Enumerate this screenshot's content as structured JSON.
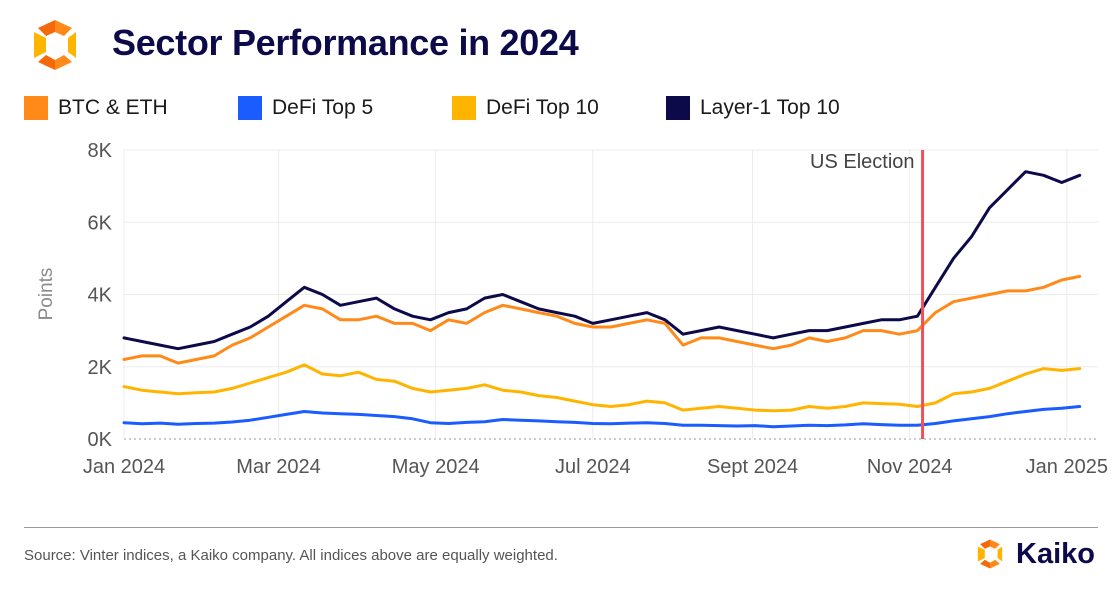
{
  "header": {
    "title": "Sector Performance in 2024",
    "logo_icon": "kaiko-logo-icon"
  },
  "colors": {
    "btc_eth": "#ff8a1a",
    "defi5": "#1a5cff",
    "defi10": "#ffb400",
    "l1": "#0d0a4a",
    "election": "#f0505a",
    "grid": "#ececec",
    "title": "#0d0a4a"
  },
  "chart_data": {
    "type": "line",
    "title": "Sector Performance in 2024",
    "xlabel": "",
    "ylabel": "Points",
    "ylim": [
      0,
      8000
    ],
    "yticks": [
      0,
      2000,
      4000,
      6000,
      8000
    ],
    "ytick_labels": [
      "0K",
      "2K",
      "4K",
      "6K",
      "8K"
    ],
    "xlim": [
      "2024-01-01",
      "2025-01-10"
    ],
    "xticks": [
      "2024-01-01",
      "2024-03-01",
      "2024-05-01",
      "2024-07-01",
      "2024-09-01",
      "2024-11-01",
      "2025-01-01"
    ],
    "xtick_labels": [
      "Jan 2024",
      "Mar 2024",
      "May 2024",
      "Jul 2024",
      "Sept 2024",
      "Nov 2024",
      "Jan 2025"
    ],
    "grid": true,
    "legend_position": "top",
    "annotations": [
      {
        "type": "vline",
        "x": "2024-11-06",
        "label": "US Election"
      }
    ],
    "dates": [
      "2024-01-01",
      "2024-01-08",
      "2024-01-15",
      "2024-01-22",
      "2024-01-29",
      "2024-02-05",
      "2024-02-12",
      "2024-02-19",
      "2024-02-26",
      "2024-03-04",
      "2024-03-11",
      "2024-03-18",
      "2024-03-25",
      "2024-04-01",
      "2024-04-08",
      "2024-04-15",
      "2024-04-22",
      "2024-04-29",
      "2024-05-06",
      "2024-05-13",
      "2024-05-20",
      "2024-05-27",
      "2024-06-03",
      "2024-06-10",
      "2024-06-17",
      "2024-06-24",
      "2024-07-01",
      "2024-07-08",
      "2024-07-15",
      "2024-07-22",
      "2024-07-29",
      "2024-08-05",
      "2024-08-12",
      "2024-08-19",
      "2024-08-26",
      "2024-09-02",
      "2024-09-09",
      "2024-09-16",
      "2024-09-23",
      "2024-09-30",
      "2024-10-07",
      "2024-10-14",
      "2024-10-21",
      "2024-10-28",
      "2024-11-04",
      "2024-11-11",
      "2024-11-18",
      "2024-11-25",
      "2024-12-02",
      "2024-12-09",
      "2024-12-16",
      "2024-12-23",
      "2024-12-30",
      "2025-01-06"
    ],
    "series": [
      {
        "name": "BTC & ETH",
        "color_key": "btc_eth",
        "values": [
          2200,
          2300,
          2300,
          2100,
          2200,
          2300,
          2600,
          2800,
          3100,
          3400,
          3700,
          3600,
          3300,
          3300,
          3400,
          3200,
          3200,
          3000,
          3300,
          3200,
          3500,
          3700,
          3600,
          3500,
          3400,
          3200,
          3100,
          3100,
          3200,
          3300,
          3200,
          2600,
          2800,
          2800,
          2700,
          2600,
          2500,
          2600,
          2800,
          2700,
          2800,
          3000,
          3000,
          2900,
          3000,
          3500,
          3800,
          3900,
          4000,
          4100,
          4100,
          4200,
          4400,
          4500
        ]
      },
      {
        "name": "DeFi Top 5",
        "color_key": "defi5",
        "values": [
          450,
          420,
          440,
          410,
          430,
          440,
          470,
          520,
          600,
          680,
          760,
          720,
          700,
          680,
          650,
          620,
          560,
          450,
          430,
          460,
          480,
          540,
          520,
          500,
          480,
          460,
          430,
          420,
          440,
          450,
          430,
          380,
          380,
          370,
          360,
          370,
          340,
          360,
          380,
          370,
          390,
          420,
          400,
          380,
          380,
          430,
          500,
          560,
          620,
          700,
          760,
          820,
          850,
          900
        ]
      },
      {
        "name": "DeFi Top 10",
        "color_key": "defi10",
        "values": [
          1450,
          1350,
          1300,
          1250,
          1280,
          1300,
          1400,
          1550,
          1700,
          1850,
          2050,
          1800,
          1750,
          1850,
          1650,
          1600,
          1400,
          1300,
          1350,
          1400,
          1500,
          1350,
          1300,
          1200,
          1150,
          1050,
          950,
          900,
          950,
          1050,
          1000,
          800,
          850,
          900,
          850,
          800,
          780,
          800,
          900,
          850,
          900,
          1000,
          980,
          960,
          900,
          1000,
          1250,
          1300,
          1400,
          1600,
          1800,
          1950,
          1900,
          1950
        ]
      },
      {
        "name": "Layer-1 Top 10",
        "color_key": "l1",
        "values": [
          2800,
          2700,
          2600,
          2500,
          2600,
          2700,
          2900,
          3100,
          3400,
          3800,
          4200,
          4000,
          3700,
          3800,
          3900,
          3600,
          3400,
          3300,
          3500,
          3600,
          3900,
          4000,
          3800,
          3600,
          3500,
          3400,
          3200,
          3300,
          3400,
          3500,
          3300,
          2900,
          3000,
          3100,
          3000,
          2900,
          2800,
          2900,
          3000,
          3000,
          3100,
          3200,
          3300,
          3300,
          3400,
          4200,
          5000,
          5600,
          6400,
          6900,
          7400,
          7300,
          7100,
          7300
        ]
      }
    ]
  },
  "footer": {
    "source": "Source: Vinter indices, a Kaiko company. All indices above are equally weighted.",
    "brand": "Kaiko",
    "brand_icon": "kaiko-logo-icon"
  }
}
